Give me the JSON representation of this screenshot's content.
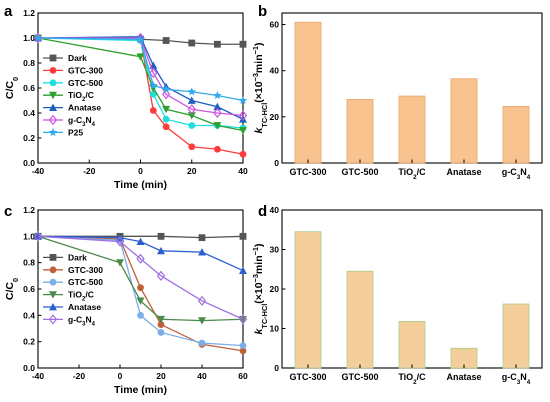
{
  "panels": {
    "a": {
      "label": "a"
    },
    "b": {
      "label": "b"
    },
    "c": {
      "label": "c"
    },
    "d": {
      "label": "d"
    }
  },
  "chart_data": [
    {
      "id": "a",
      "type": "line",
      "xlabel": "Time (min)",
      "ylabel": "C/C",
      "ylabel_sub": "0",
      "xlim": [
        -40,
        40
      ],
      "ylim": [
        0.0,
        1.2
      ],
      "xticks": [
        -40,
        -20,
        0,
        20,
        40
      ],
      "yticks": [
        0.0,
        0.2,
        0.4,
        0.6,
        0.8,
        1.0,
        1.2
      ],
      "ytick_labels": [
        "0.0",
        "0.2",
        "0.4",
        "0.6",
        "0.8",
        "1.0",
        "1.2"
      ],
      "legend_position": "left",
      "series": [
        {
          "name": "Dark",
          "color": "#555555",
          "marker": "square",
          "x": [
            -40,
            0,
            10,
            20,
            30,
            40
          ],
          "y": [
            1.0,
            0.99,
            0.98,
            0.96,
            0.95,
            0.95
          ]
        },
        {
          "name": "GTC-300",
          "color": "#ff3b3b",
          "marker": "circle",
          "x": [
            -40,
            0,
            5,
            10,
            20,
            30,
            40
          ],
          "y": [
            1.0,
            0.99,
            0.42,
            0.29,
            0.13,
            0.11,
            0.07
          ]
        },
        {
          "name": "GTC-500",
          "color": "#22dddd",
          "marker": "circle",
          "x": [
            -40,
            0,
            5,
            10,
            20,
            30,
            40
          ],
          "y": [
            1.0,
            0.98,
            0.55,
            0.35,
            0.3,
            0.3,
            0.28
          ]
        },
        {
          "name": "TiO2/C",
          "name_main": "TiO",
          "name_sub": "2",
          "name_rest": "/C",
          "color": "#2ea02e",
          "marker": "triangle-down",
          "x": [
            -40,
            0,
            5,
            10,
            20,
            30,
            40
          ],
          "y": [
            1.0,
            0.85,
            0.6,
            0.43,
            0.38,
            0.3,
            0.26
          ]
        },
        {
          "name": "Anatase",
          "color": "#1f5fbf",
          "marker": "triangle-up",
          "x": [
            -40,
            0,
            5,
            10,
            20,
            30,
            40
          ],
          "y": [
            1.0,
            1.01,
            0.78,
            0.61,
            0.5,
            0.45,
            0.35
          ]
        },
        {
          "name": "g-C3N4",
          "name_main": "g-C",
          "name_sub": "3",
          "name_rest": "N",
          "name_sub2": "4",
          "color": "#cc55dd",
          "marker": "diamond",
          "x": [
            -40,
            0,
            5,
            10,
            20,
            30,
            40
          ],
          "y": [
            1.0,
            1.0,
            0.72,
            0.55,
            0.43,
            0.4,
            0.38
          ]
        },
        {
          "name": "P25",
          "color": "#33aaee",
          "marker": "star",
          "x": [
            -40,
            0,
            5,
            10,
            20,
            30,
            40
          ],
          "y": [
            1.0,
            0.99,
            0.62,
            0.59,
            0.57,
            0.54,
            0.5
          ]
        }
      ]
    },
    {
      "id": "b",
      "type": "bar",
      "ylabel_main": "k",
      "ylabel_sub": "TC-HCl",
      "ylabel_rest": "(×10",
      "ylabel_sup": "−3",
      "ylabel_end": "min",
      "ylabel_sup2": "−1",
      "ylabel_close": ")",
      "ylim": [
        0,
        65
      ],
      "yticks": [
        0,
        20,
        40,
        60
      ],
      "categories": [
        "GTC-300",
        "GTC-500",
        "TiO2/C",
        "Anatase",
        "g-C3N4"
      ],
      "values": [
        61.0,
        27.5,
        29.0,
        36.5,
        24.5
      ],
      "bar_color": "#f9c38f",
      "bar_edge": "#e8a26a"
    },
    {
      "id": "c",
      "type": "line",
      "xlabel": "Time (min)",
      "ylabel": "C/C",
      "ylabel_sub": "0",
      "xlim": [
        -40,
        60
      ],
      "ylim": [
        0.0,
        1.2
      ],
      "xticks": [
        -40,
        -20,
        0,
        20,
        40,
        60
      ],
      "yticks": [
        0.0,
        0.2,
        0.4,
        0.6,
        0.8,
        1.0,
        1.2
      ],
      "ytick_labels": [
        "0.0",
        "0.2",
        "0.4",
        "0.6",
        "0.8",
        "1.0",
        "1.2"
      ],
      "legend_position": "left",
      "series": [
        {
          "name": "Dark",
          "color": "#555555",
          "marker": "square",
          "x": [
            -40,
            0,
            20,
            40,
            60
          ],
          "y": [
            1.0,
            1.0,
            1.0,
            0.99,
            1.0
          ]
        },
        {
          "name": "GTC-300",
          "color": "#c0603a",
          "marker": "circle",
          "x": [
            -40,
            0,
            10,
            20,
            40,
            60
          ],
          "y": [
            1.0,
            0.98,
            0.61,
            0.33,
            0.18,
            0.13
          ]
        },
        {
          "name": "GTC-500",
          "color": "#7aaee8",
          "marker": "circle",
          "x": [
            -40,
            0,
            10,
            20,
            40,
            60
          ],
          "y": [
            1.0,
            0.97,
            0.4,
            0.27,
            0.19,
            0.17
          ]
        },
        {
          "name": "TiO2/C",
          "name_main": "TiO",
          "name_sub": "2",
          "name_rest": "/C",
          "color": "#4a8a4a",
          "marker": "triangle-down",
          "x": [
            -40,
            0,
            10,
            20,
            40,
            60
          ],
          "y": [
            1.0,
            0.8,
            0.51,
            0.37,
            0.36,
            0.37
          ]
        },
        {
          "name": "Anatase",
          "color": "#2a5fd0",
          "marker": "triangle-up",
          "x": [
            -40,
            0,
            10,
            20,
            40,
            60
          ],
          "y": [
            1.0,
            0.99,
            0.96,
            0.89,
            0.88,
            0.74
          ]
        },
        {
          "name": "g-C3N4",
          "name_main": "g-C",
          "name_sub": "3",
          "name_rest": "N",
          "name_sub2": "4",
          "color": "#a070e0",
          "marker": "diamond",
          "x": [
            -40,
            0,
            10,
            20,
            40,
            60
          ],
          "y": [
            1.0,
            0.96,
            0.83,
            0.7,
            0.51,
            0.37
          ]
        }
      ]
    },
    {
      "id": "d",
      "type": "bar",
      "ylabel_main": "k",
      "ylabel_sub": "TC-HCl",
      "ylabel_rest": "(×10",
      "ylabel_sup": "−3",
      "ylabel_end": "min",
      "ylabel_sup2": "−1",
      "ylabel_close": ")",
      "ylim": [
        0,
        40
      ],
      "yticks": [
        0,
        10,
        20,
        30,
        40
      ],
      "categories": [
        "GTC-300",
        "GTC-500",
        "TiO2/C",
        "Anatase",
        "g-C3N4"
      ],
      "values": [
        34.5,
        24.5,
        11.8,
        5.0,
        16.2
      ],
      "bar_color": "#f4ce9a",
      "bar_edge": "#a9cf8c"
    }
  ]
}
